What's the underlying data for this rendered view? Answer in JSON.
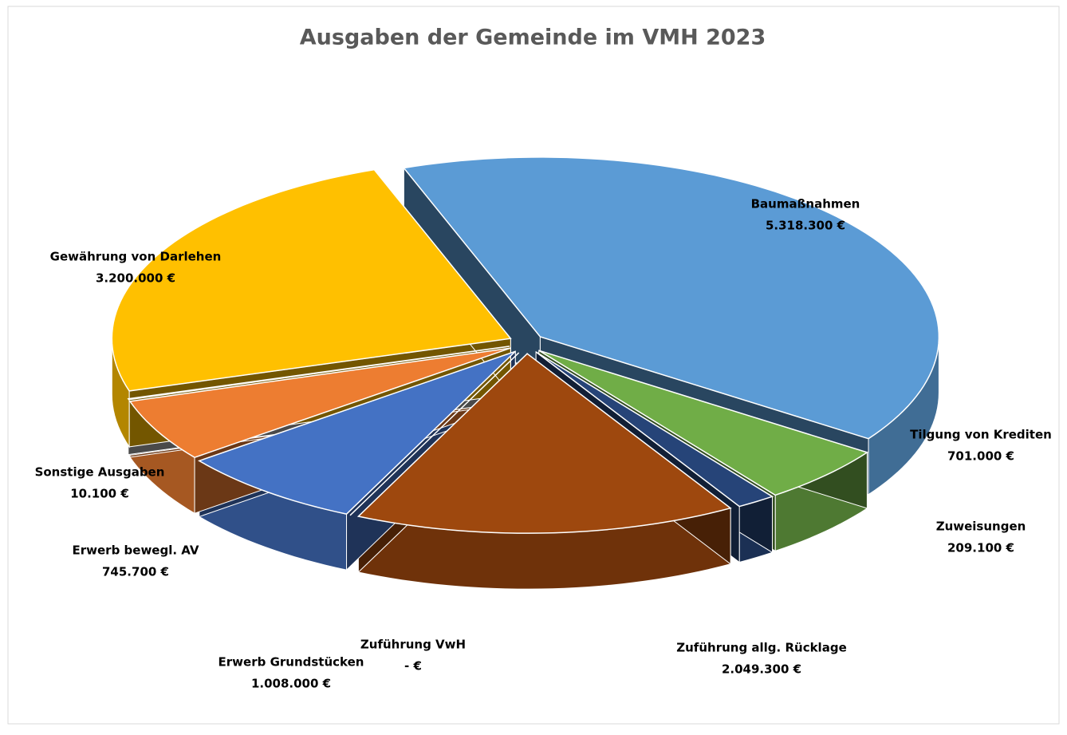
{
  "chart_data": {
    "type": "pie3d",
    "title": "Ausgaben der Gemeinde im VMH 2023",
    "categories": [
      "Baumaßnahmen",
      "Tilgung von Krediten",
      "Zuweisungen",
      "Zuführung allg. Rücklage",
      "Zuführung VwH",
      "Erwerb Grundstücken",
      "Erwerb bewegl. AV",
      "Sonstige Ausgaben",
      "Gewährung von Darlehen"
    ],
    "values": [
      5318300,
      701000,
      209100,
      2049300,
      0,
      1008000,
      745700,
      10100,
      3200000
    ],
    "value_labels": [
      "5.318.300 €",
      "701.000 €",
      "209.100 €",
      "2.049.300 €",
      "-   €",
      "1.008.000 €",
      "745.700 €",
      "10.100 €",
      "3.200.000 €"
    ],
    "colors": [
      "#5b9bd5",
      "#70ad47",
      "#264478",
      "#9e480e",
      "#636363",
      "#4472c4",
      "#ed7d31",
      "#a5a5a5",
      "#ffc000"
    ]
  }
}
